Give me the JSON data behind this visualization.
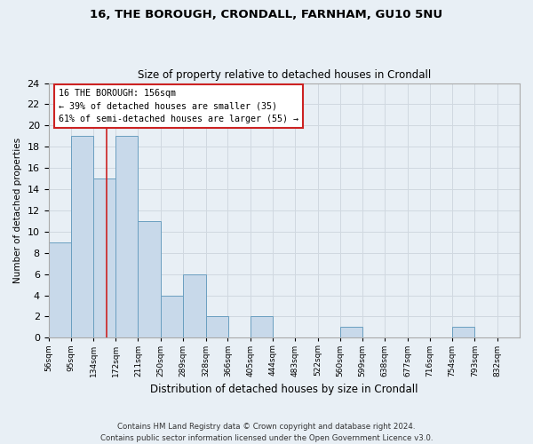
{
  "title_line1": "16, THE BOROUGH, CRONDALL, FARNHAM, GU10 5NU",
  "title_line2": "Size of property relative to detached houses in Crondall",
  "xlabel": "Distribution of detached houses by size in Crondall",
  "ylabel": "Number of detached properties",
  "bin_edges": [
    56,
    95,
    134,
    172,
    211,
    250,
    289,
    328,
    366,
    405,
    444,
    483,
    522,
    560,
    599,
    638,
    677,
    716,
    754,
    793,
    832
  ],
  "bin_labels": [
    "56sqm",
    "95sqm",
    "134sqm",
    "172sqm",
    "211sqm",
    "250sqm",
    "289sqm",
    "328sqm",
    "366sqm",
    "405sqm",
    "444sqm",
    "483sqm",
    "522sqm",
    "560sqm",
    "599sqm",
    "638sqm",
    "677sqm",
    "716sqm",
    "754sqm",
    "793sqm",
    "832sqm"
  ],
  "counts": [
    9,
    19,
    15,
    19,
    11,
    4,
    6,
    2,
    0,
    2,
    0,
    0,
    0,
    1,
    0,
    0,
    0,
    0,
    1,
    0
  ],
  "bar_color": "#c8d9ea",
  "bar_edge_color": "#6a9fc0",
  "grid_color": "#d0d8e0",
  "property_line_x": 156,
  "annotation_text_line1": "16 THE BOROUGH: 156sqm",
  "annotation_text_line2": "← 39% of detached houses are smaller (35)",
  "annotation_text_line3": "61% of semi-detached houses are larger (55) →",
  "red_line_color": "#cc2222",
  "box_edge_color": "#cc2222",
  "ylim_max": 24,
  "yticks": [
    0,
    2,
    4,
    6,
    8,
    10,
    12,
    14,
    16,
    18,
    20,
    22,
    24
  ],
  "footer_line1": "Contains HM Land Registry data © Crown copyright and database right 2024.",
  "footer_line2": "Contains public sector information licensed under the Open Government Licence v3.0.",
  "background_color": "#e8eff5",
  "plot_bg_color": "#e8eff5"
}
